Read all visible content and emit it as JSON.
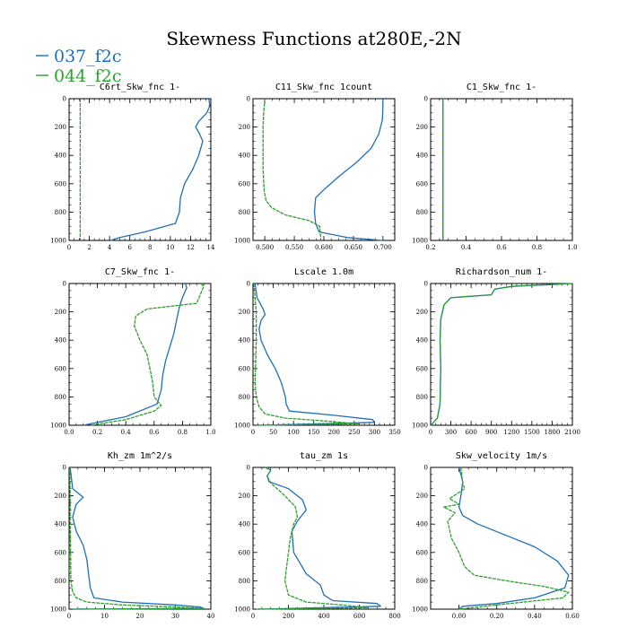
{
  "figure": {
    "title": "Skewness Functions at280E,-2N",
    "legend": [
      {
        "label": "037_f2c",
        "color": "#1f6fb5"
      },
      {
        "label": "044_f2c",
        "color": "#2ca02c"
      }
    ]
  },
  "chart_data": [
    {
      "type": "line",
      "title": "C6rt_Skw_fnc   1-",
      "xlim": [
        0,
        14
      ],
      "ylim": [
        0,
        1000
      ],
      "y_inverted": true,
      "xticks": [
        "0",
        "2",
        "4",
        "6",
        "8",
        "10",
        "12",
        "14"
      ],
      "yticks": [
        "0",
        "200",
        "400",
        "600",
        "800",
        "1000"
      ],
      "series": [
        {
          "name": "037_f2c",
          "x": [
            13.8,
            13.9,
            13.6,
            12.8,
            12.5,
            12.9,
            13.2,
            12.8,
            12.2,
            11.4,
            11.0,
            10.9,
            10.5,
            7.5,
            5.0,
            4.1
          ],
          "y": [
            0,
            50,
            100,
            160,
            200,
            250,
            300,
            400,
            500,
            600,
            700,
            800,
            880,
            940,
            980,
            1000
          ]
        },
        {
          "name": "044_f2c",
          "x": [
            1.1,
            1.1,
            1.1
          ],
          "y": [
            0,
            500,
            1000
          ]
        }
      ]
    },
    {
      "type": "line",
      "title": "C11_Skw_fnc   1count",
      "xlim": [
        0.48,
        0.72
      ],
      "ylim": [
        0,
        1000
      ],
      "y_inverted": true,
      "xticks": [
        "0.500",
        "0.550",
        "0.600",
        "0.650",
        "0.700"
      ],
      "yticks": [
        "0",
        "200",
        "400",
        "600",
        "800",
        "1000"
      ],
      "series": [
        {
          "name": "037_f2c",
          "x": [
            0.7,
            0.7,
            0.699,
            0.693,
            0.68,
            0.655,
            0.625,
            0.598,
            0.586,
            0.584,
            0.586,
            0.592,
            0.64,
            0.7
          ],
          "y": [
            0,
            60,
            150,
            250,
            350,
            450,
            550,
            650,
            700,
            800,
            880,
            940,
            980,
            1000
          ]
        },
        {
          "name": "044_f2c",
          "x": [
            0.5,
            0.498,
            0.497,
            0.497,
            0.499,
            0.502,
            0.512,
            0.535,
            0.575,
            0.593,
            0.595
          ],
          "y": [
            0,
            100,
            200,
            500,
            650,
            720,
            770,
            820,
            860,
            900,
            1000
          ]
        }
      ]
    },
    {
      "type": "line",
      "title": "C1_Skw_fnc   1-",
      "xlim": [
        0.2,
        1.0
      ],
      "ylim": [
        0,
        1000
      ],
      "y_inverted": true,
      "xticks": [
        "0.2",
        "0.4",
        "0.6",
        "0.8",
        "1.0"
      ],
      "yticks": [
        "0",
        "200",
        "400",
        "600",
        "800",
        "1000"
      ],
      "series": [
        {
          "name": "037_f2c",
          "x": [
            0.27,
            0.27,
            0.27
          ],
          "y": [
            0,
            500,
            1000
          ]
        },
        {
          "name": "044_f2c",
          "x": [
            0.27,
            0.27,
            0.27
          ],
          "y": [
            0,
            500,
            1000
          ]
        }
      ]
    },
    {
      "type": "line",
      "title": "C7_Skw_fnc   1-",
      "xlim": [
        0.0,
        1.0
      ],
      "ylim": [
        0,
        1000
      ],
      "y_inverted": true,
      "xticks": [
        "0.0",
        "0.2",
        "0.4",
        "0.6",
        "0.8",
        "1.0"
      ],
      "yticks": [
        "0",
        "200",
        "400",
        "600",
        "800",
        "1000"
      ],
      "series": [
        {
          "name": "037_f2c",
          "x": [
            0.82,
            0.83,
            0.8,
            0.78,
            0.76,
            0.74,
            0.71,
            0.68,
            0.66,
            0.65,
            0.62,
            0.4,
            0.1
          ],
          "y": [
            0,
            30,
            100,
            160,
            250,
            350,
            450,
            550,
            650,
            750,
            850,
            940,
            1000
          ]
        },
        {
          "name": "044_f2c",
          "x": [
            0.93,
            0.95,
            0.9,
            0.55,
            0.47,
            0.46,
            0.5,
            0.55,
            0.57,
            0.59,
            0.6,
            0.65,
            0.6,
            0.4,
            0.15
          ],
          "y": [
            0,
            20,
            140,
            180,
            230,
            300,
            400,
            500,
            600,
            700,
            800,
            860,
            900,
            960,
            1000
          ]
        }
      ]
    },
    {
      "type": "line",
      "title": "Lscale   1.0m",
      "xlim": [
        0,
        350
      ],
      "ylim": [
        0,
        1000
      ],
      "y_inverted": true,
      "xticks": [
        "0",
        "50",
        "100",
        "150",
        "200",
        "250",
        "300",
        "350"
      ],
      "yticks": [
        "0",
        "200",
        "400",
        "600",
        "800",
        "1000"
      ],
      "series": [
        {
          "name": "037_f2c",
          "x": [
            5,
            10,
            25,
            30,
            20,
            15,
            20,
            35,
            55,
            70,
            80,
            82,
            90,
            200,
            295,
            300,
            20
          ],
          "y": [
            0,
            100,
            180,
            220,
            260,
            320,
            400,
            500,
            600,
            700,
            800,
            850,
            900,
            930,
            960,
            980,
            1000
          ]
        },
        {
          "name": "044_f2c",
          "x": [
            2,
            5,
            8,
            8,
            7,
            6,
            5,
            8,
            15,
            30,
            80,
            180,
            260,
            10
          ],
          "y": [
            0,
            100,
            200,
            400,
            500,
            600,
            700,
            800,
            870,
            920,
            950,
            970,
            990,
            1000
          ]
        }
      ]
    },
    {
      "type": "line",
      "title": "Richardson_num   1-",
      "xlim": [
        0,
        2100
      ],
      "ylim": [
        0,
        1000
      ],
      "y_inverted": true,
      "xticks": [
        "0",
        "300",
        "600",
        "900",
        "1200",
        "1500",
        "1800",
        "2100"
      ],
      "yticks": [
        "0",
        "200",
        "400",
        "600",
        "800",
        "1000"
      ],
      "series": [
        {
          "name": "037_f2c",
          "x": [
            2100,
            1200,
            950,
            900,
            300,
            200,
            150,
            140,
            145,
            150,
            145,
            140,
            100,
            5
          ],
          "y": [
            0,
            20,
            40,
            80,
            100,
            150,
            250,
            400,
            500,
            600,
            700,
            850,
            950,
            1000
          ]
        },
        {
          "name": "044_f2c",
          "x": [
            2100,
            1200,
            950,
            900,
            300,
            200,
            150,
            140,
            145,
            150,
            145,
            140,
            100,
            5
          ],
          "y": [
            0,
            20,
            40,
            80,
            100,
            150,
            250,
            400,
            500,
            600,
            700,
            850,
            950,
            1000
          ]
        }
      ]
    },
    {
      "type": "line",
      "title": "Kh_zm   1m^2/s",
      "xlim": [
        0,
        40
      ],
      "ylim": [
        0,
        1000
      ],
      "y_inverted": true,
      "xticks": [
        "0",
        "10",
        "20",
        "30",
        "40"
      ],
      "yticks": [
        "0",
        "200",
        "400",
        "600",
        "800",
        "1000"
      ],
      "series": [
        {
          "name": "037_f2c",
          "x": [
            0.3,
            1,
            4,
            2,
            1,
            2,
            4,
            5,
            5.5,
            6,
            7,
            15,
            30,
            37,
            38,
            1
          ],
          "y": [
            0,
            150,
            210,
            260,
            350,
            450,
            550,
            650,
            750,
            850,
            920,
            950,
            970,
            985,
            995,
            1000
          ]
        },
        {
          "name": "044_f2c",
          "x": [
            0.2,
            0.3,
            0.3,
            0.4,
            0.5,
            1,
            2,
            5,
            15,
            30,
            38,
            1
          ],
          "y": [
            0,
            200,
            400,
            600,
            800,
            880,
            920,
            950,
            970,
            985,
            995,
            1000
          ]
        }
      ]
    },
    {
      "type": "line",
      "title": "tau_zm   1s",
      "xlim": [
        0,
        800
      ],
      "ylim": [
        0,
        1000
      ],
      "y_inverted": true,
      "xticks": [
        "0",
        "200",
        "400",
        "600",
        "800"
      ],
      "yticks": [
        "0",
        "200",
        "400",
        "600",
        "800",
        "1000"
      ],
      "series": [
        {
          "name": "037_f2c",
          "x": [
            80,
            100,
            80,
            90,
            200,
            280,
            300,
            250,
            220,
            230,
            300,
            380,
            400,
            450,
            700,
            720,
            50
          ],
          "y": [
            0,
            20,
            60,
            100,
            150,
            230,
            300,
            380,
            450,
            600,
            750,
            830,
            900,
            940,
            960,
            980,
            1000
          ]
        },
        {
          "name": "044_f2c",
          "x": [
            70,
            100,
            80,
            100,
            180,
            240,
            250,
            230,
            210,
            200,
            190,
            180,
            200,
            300,
            500,
            650,
            20
          ],
          "y": [
            0,
            20,
            60,
            110,
            200,
            280,
            350,
            400,
            500,
            600,
            700,
            800,
            900,
            950,
            970,
            990,
            1000
          ]
        }
      ]
    },
    {
      "type": "line",
      "title": "Skw_velocity   1m/s",
      "xlim": [
        -0.15,
        0.6
      ],
      "ylim": [
        0,
        1000
      ],
      "y_inverted": true,
      "xticks": [
        "0.00",
        "0.20",
        "0.40",
        "0.60"
      ],
      "yticks": [
        "0",
        "200",
        "400",
        "600",
        "800",
        "1000"
      ],
      "series": [
        {
          "name": "037_f2c",
          "x": [
            0.0,
            0.02,
            0.01,
            0.0,
            0.02,
            0.1,
            0.25,
            0.4,
            0.52,
            0.58,
            0.56,
            0.4,
            0.2,
            0.02,
            0.0
          ],
          "y": [
            0,
            100,
            200,
            280,
            340,
            400,
            480,
            560,
            660,
            760,
            850,
            920,
            960,
            980,
            1000
          ]
        },
        {
          "name": "044_f2c",
          "x": [
            0.01,
            0.02,
            0.03,
            -0.05,
            0.0,
            -0.08,
            -0.02,
            -0.06,
            -0.04,
            0.0,
            0.03,
            0.08,
            0.25,
            0.45,
            0.58,
            0.55,
            0.2,
            0.0
          ],
          "y": [
            0,
            110,
            150,
            220,
            260,
            280,
            320,
            380,
            500,
            600,
            700,
            760,
            800,
            840,
            880,
            920,
            970,
            1000
          ]
        }
      ]
    }
  ]
}
